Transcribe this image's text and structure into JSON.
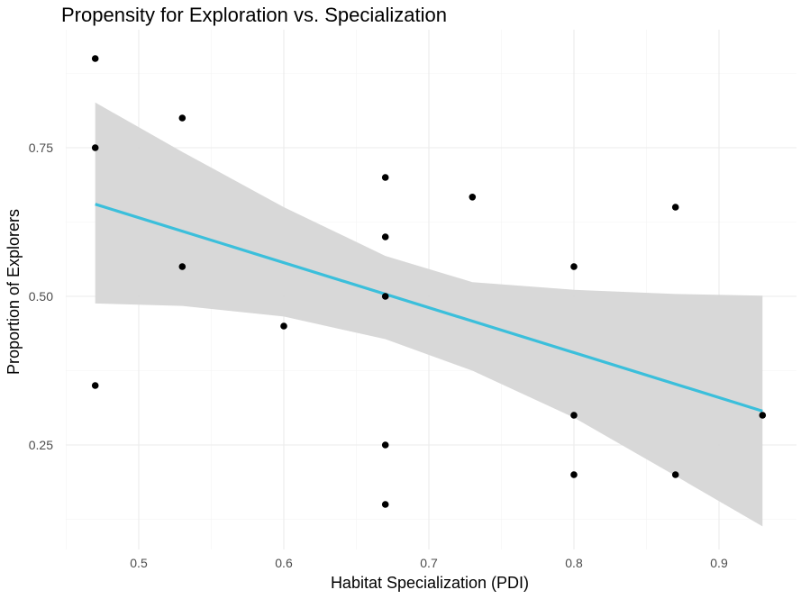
{
  "chart_data": {
    "type": "scatter",
    "title": "Propensity for Exploration vs. Specialization",
    "xlabel": "Habitat Specialization (PDI)",
    "ylabel": "Proportion of Explorers",
    "xlim": [
      0.45,
      0.93
    ],
    "ylim": [
      0.12,
      0.9
    ],
    "x_ticks": [
      0.5,
      0.6,
      0.7,
      0.8,
      0.9
    ],
    "x_tick_labels": [
      "0.5",
      "0.6",
      "0.7",
      "0.8",
      "0.9"
    ],
    "y_ticks": [
      0.25,
      0.5,
      0.75
    ],
    "y_tick_labels": [
      "0.25",
      "0.50",
      "0.75"
    ],
    "grid": true,
    "points": [
      {
        "x": 0.47,
        "y": 0.9
      },
      {
        "x": 0.47,
        "y": 0.75
      },
      {
        "x": 0.47,
        "y": 0.35
      },
      {
        "x": 0.53,
        "y": 0.8
      },
      {
        "x": 0.53,
        "y": 0.55
      },
      {
        "x": 0.6,
        "y": 0.45
      },
      {
        "x": 0.67,
        "y": 0.7
      },
      {
        "x": 0.67,
        "y": 0.6
      },
      {
        "x": 0.67,
        "y": 0.5
      },
      {
        "x": 0.67,
        "y": 0.25
      },
      {
        "x": 0.67,
        "y": 0.15
      },
      {
        "x": 0.73,
        "y": 0.667
      },
      {
        "x": 0.8,
        "y": 0.55
      },
      {
        "x": 0.8,
        "y": 0.3
      },
      {
        "x": 0.8,
        "y": 0.2
      },
      {
        "x": 0.87,
        "y": 0.65
      },
      {
        "x": 0.87,
        "y": 0.2
      },
      {
        "x": 0.93,
        "y": 0.3
      }
    ],
    "trend_line": {
      "x": [
        0.47,
        0.93
      ],
      "y": [
        0.655,
        0.307
      ],
      "color": "#3bbfdb"
    },
    "confidence_band": {
      "x": [
        0.47,
        0.53,
        0.6,
        0.67,
        0.73,
        0.8,
        0.87,
        0.93
      ],
      "upper": [
        0.826,
        0.743,
        0.65,
        0.568,
        0.524,
        0.511,
        0.504,
        0.501
      ],
      "lower": [
        0.488,
        0.484,
        0.466,
        0.428,
        0.375,
        0.296,
        0.198,
        0.113
      ],
      "color": "#d6d6d6"
    },
    "point_color": "#000000"
  }
}
